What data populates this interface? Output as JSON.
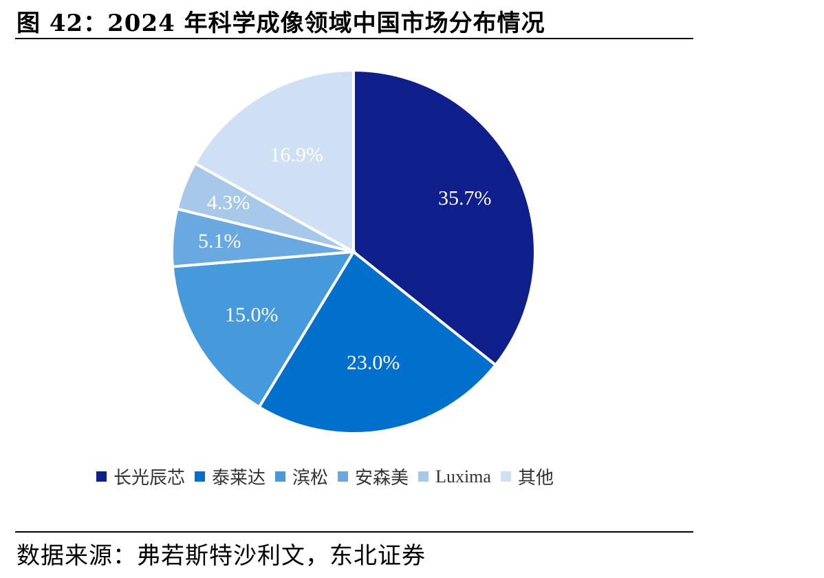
{
  "figure": {
    "title": "图 42：2024 年科学成像领域中国市场分布情况",
    "source": "数据来源：弗若斯特沙利文，东北证券"
  },
  "chart_data": {
    "type": "pie",
    "title": "",
    "slices": [
      {
        "name": "长光辰芯",
        "value": 35.7,
        "label": "35.7%",
        "color": "#0F1F8C"
      },
      {
        "name": "泰莱达",
        "value": 23.0,
        "label": "23.0%",
        "color": "#0070CC"
      },
      {
        "name": "滨松",
        "value": 15.0,
        "label": "15.0%",
        "color": "#4699DA"
      },
      {
        "name": "安森美",
        "value": 5.1,
        "label": "5.1%",
        "color": "#6AA8E2"
      },
      {
        "name": "Luxima",
        "value": 4.3,
        "label": "4.3%",
        "color": "#A8C8EA"
      },
      {
        "name": "其他",
        "value": 16.9,
        "label": "16.9%",
        "color": "#CFE0F5"
      }
    ],
    "legend_position": "bottom"
  }
}
